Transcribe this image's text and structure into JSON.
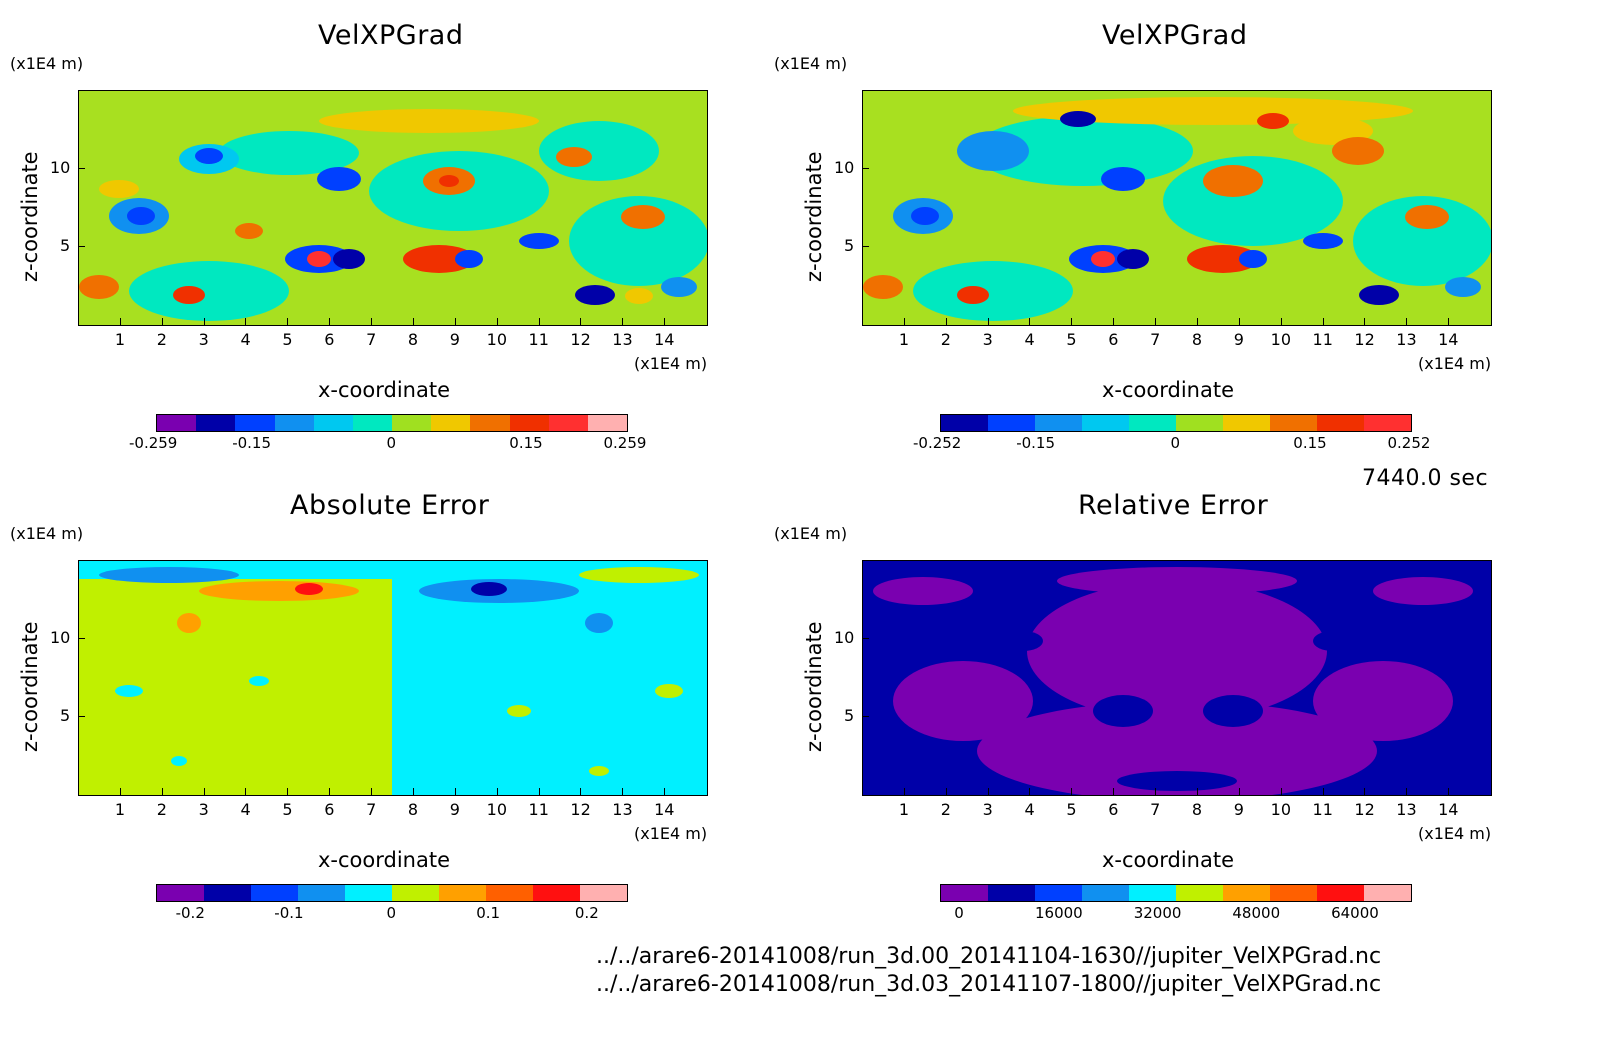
{
  "time_label": "7440.0 sec",
  "files": [
    "../../arare6-20141008/run_3d.00_20141104-1630//jupiter_VelXPGrad.nc",
    "../../arare6-20141008/run_3d.03_20141107-1800//jupiter_VelXPGrad.nc"
  ],
  "panels": [
    {
      "title": "VelXPGrad",
      "xlabel": "x-coordinate",
      "ylabel": "z-coordinate",
      "x_unit": "(x1E4 m)",
      "y_unit": "(x1E4 m)",
      "x_ticks": [
        "1",
        "2",
        "3",
        "4",
        "5",
        "6",
        "7",
        "8",
        "9",
        "10",
        "11",
        "12",
        "13",
        "14"
      ],
      "y_ticks": [
        "5",
        "10"
      ],
      "colorbar_ticks": [
        "-0.259",
        "-0.15",
        "0",
        "0.15",
        "0.259"
      ],
      "colorbar_colors": [
        "#7a00b0",
        "#0000a8",
        "#0040ff",
        "#1090f0",
        "#00c8f0",
        "#00e8c0",
        "#a0e020",
        "#f0c800",
        "#f07000",
        "#f03000",
        "#ff3030",
        "#ffb0b0"
      ]
    },
    {
      "title": "VelXPGrad",
      "xlabel": "x-coordinate",
      "ylabel": "z-coordinate",
      "x_unit": "(x1E4 m)",
      "y_unit": "(x1E4 m)",
      "x_ticks": [
        "1",
        "2",
        "3",
        "4",
        "5",
        "6",
        "7",
        "8",
        "9",
        "10",
        "11",
        "12",
        "13",
        "14"
      ],
      "y_ticks": [
        "5",
        "10"
      ],
      "colorbar_ticks": [
        "-0.252",
        "-0.15",
        "0",
        "0.15",
        "0.252"
      ],
      "colorbar_colors": [
        "#0000a8",
        "#0040ff",
        "#1090f0",
        "#00c8f0",
        "#00e8c0",
        "#a0e020",
        "#f0c800",
        "#f07000",
        "#f03000",
        "#ff3030"
      ]
    },
    {
      "title": "Absolute Error",
      "xlabel": "x-coordinate",
      "ylabel": "z-coordinate",
      "x_unit": "(x1E4 m)",
      "y_unit": "(x1E4 m)",
      "x_ticks": [
        "1",
        "2",
        "3",
        "4",
        "5",
        "6",
        "7",
        "8",
        "9",
        "10",
        "11",
        "12",
        "13",
        "14"
      ],
      "y_ticks": [
        "5",
        "10"
      ],
      "colorbar_ticks": [
        "-0.2",
        "-0.1",
        "0",
        "0.1",
        "0.2"
      ],
      "colorbar_colors": [
        "#7a00b0",
        "#0000a8",
        "#0040ff",
        "#1090f0",
        "#00f0ff",
        "#c0f000",
        "#ffa000",
        "#ff6000",
        "#ff1010",
        "#ffb0b0"
      ]
    },
    {
      "title": "Relative Error",
      "xlabel": "x-coordinate",
      "ylabel": "z-coordinate",
      "x_unit": "(x1E4 m)",
      "y_unit": "(x1E4 m)",
      "x_ticks": [
        "1",
        "2",
        "3",
        "4",
        "5",
        "6",
        "7",
        "8",
        "9",
        "10",
        "11",
        "12",
        "13",
        "14"
      ],
      "y_ticks": [
        "5",
        "10"
      ],
      "colorbar_ticks": [
        "0",
        "16000",
        "32000",
        "48000",
        "64000"
      ],
      "colorbar_colors": [
        "#7a00b0",
        "#0000a8",
        "#0040ff",
        "#1090f0",
        "#00f0ff",
        "#c0f000",
        "#ffa000",
        "#ff6000",
        "#ff1010",
        "#ffb0b0"
      ]
    }
  ],
  "chart_data": [
    {
      "type": "heatmap",
      "title": "VelXPGrad",
      "xlabel": "x-coordinate",
      "ylabel": "z-coordinate",
      "xlim": [
        0,
        15
      ],
      "ylim": [
        0,
        15
      ],
      "colorbar_range": [
        -0.259,
        0.259
      ]
    },
    {
      "type": "heatmap",
      "title": "VelXPGrad",
      "xlabel": "x-coordinate",
      "ylabel": "z-coordinate",
      "xlim": [
        0,
        15
      ],
      "ylim": [
        0,
        15
      ],
      "colorbar_range": [
        -0.252,
        0.252
      ]
    },
    {
      "type": "heatmap",
      "title": "Absolute Error",
      "xlabel": "x-coordinate",
      "ylabel": "z-coordinate",
      "xlim": [
        0,
        15
      ],
      "ylim": [
        0,
        15
      ],
      "colorbar_range": [
        -0.2,
        0.2
      ]
    },
    {
      "type": "heatmap",
      "title": "Relative Error",
      "xlabel": "x-coordinate",
      "ylabel": "z-coordinate",
      "xlim": [
        0,
        15
      ],
      "ylim": [
        0,
        15
      ],
      "colorbar_range": [
        0,
        64000
      ]
    }
  ]
}
